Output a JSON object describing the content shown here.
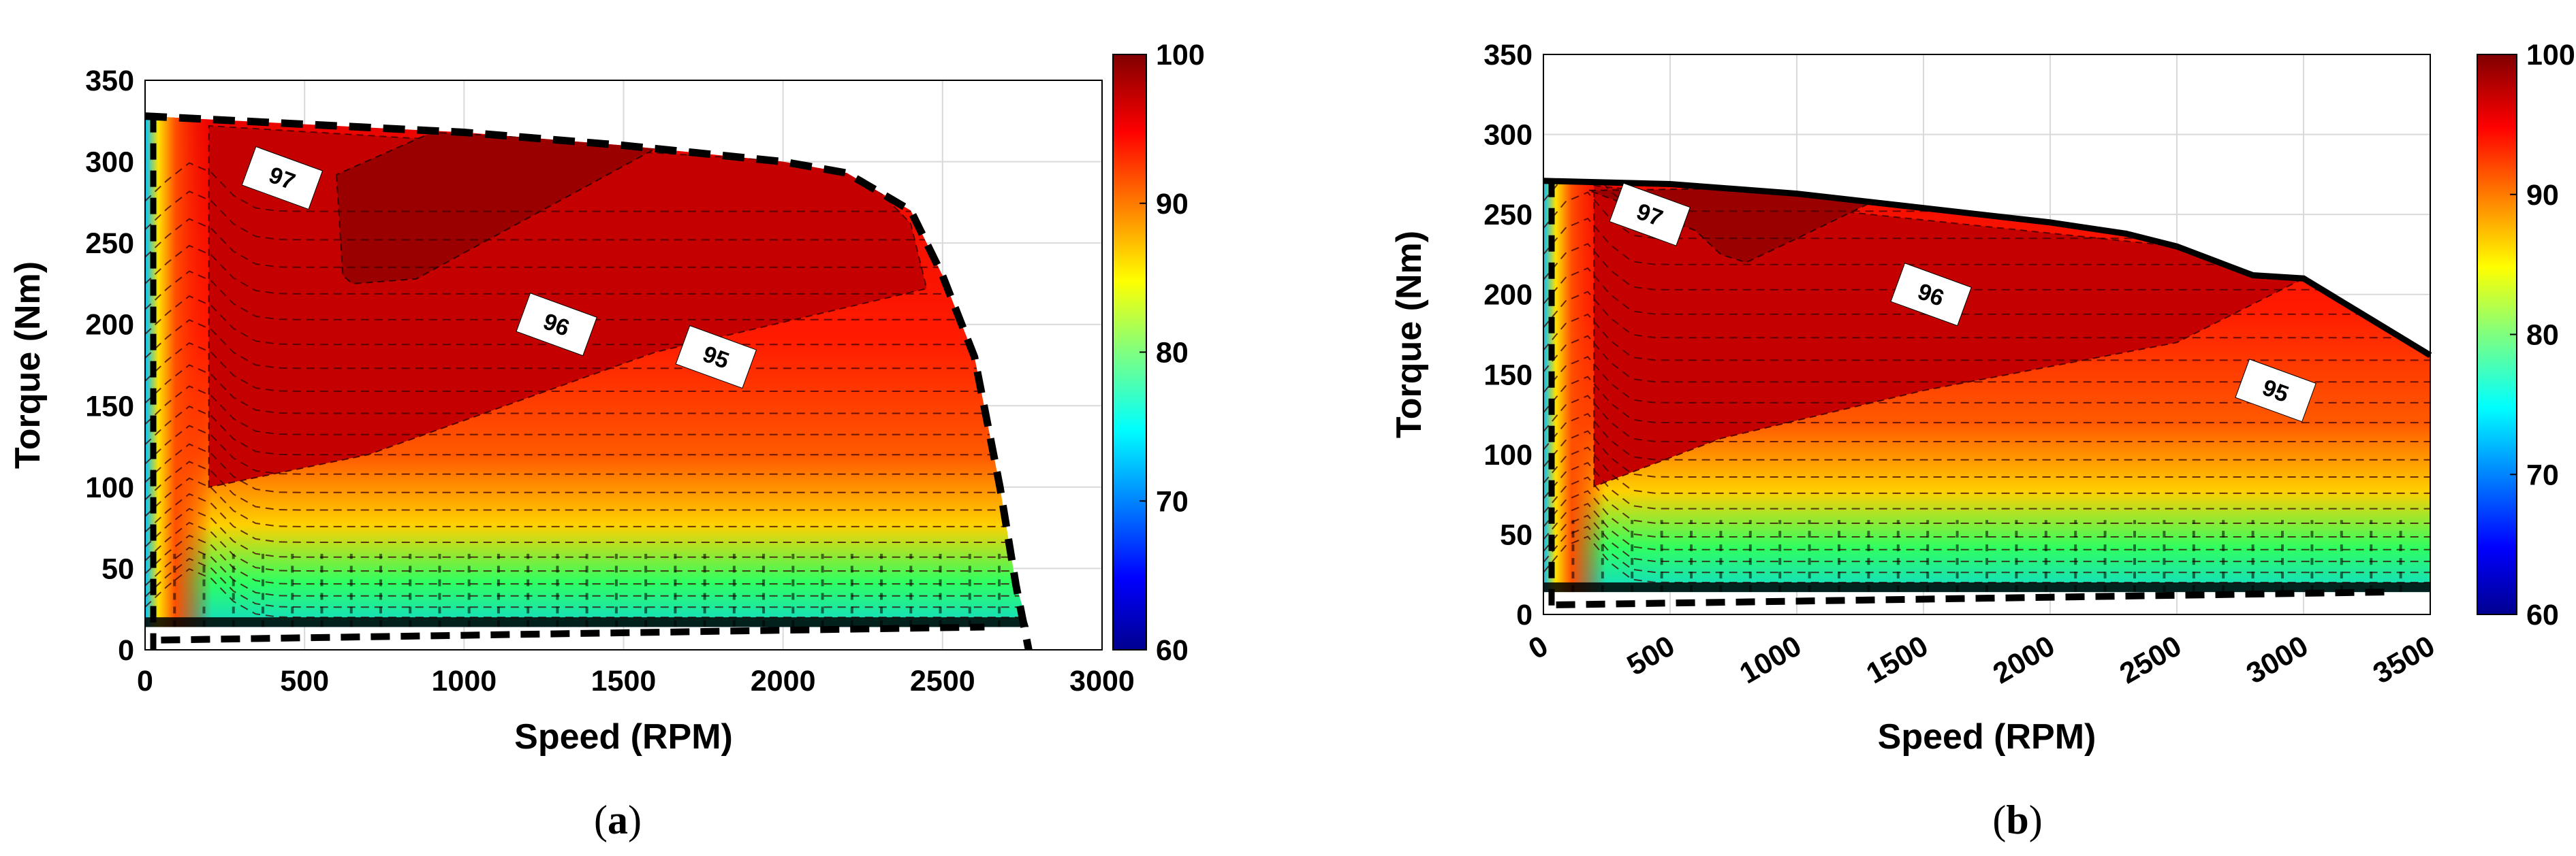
{
  "chart_data": [
    {
      "type": "heatmap",
      "panel_label": "a",
      "xlabel": "Speed (RPM)",
      "ylabel": "Torque (Nm)",
      "xlim": [
        0,
        3000
      ],
      "ylim": [
        0,
        350
      ],
      "xticks": [
        "0",
        "500",
        "1000",
        "1500",
        "2000",
        "2500",
        "3000"
      ],
      "yticks": [
        "0",
        "50",
        "100",
        "150",
        "200",
        "250",
        "300",
        "350"
      ],
      "grid": true,
      "colorbar": {
        "min": 60,
        "max": 100,
        "ticks": [
          "60",
          "70",
          "80",
          "90",
          "100"
        ]
      },
      "contour_labels": [
        {
          "text": "97",
          "speed": 430,
          "torque": 290
        },
        {
          "text": "96",
          "speed": 1290,
          "torque": 200
        },
        {
          "text": "95",
          "speed": 1790,
          "torque": 180
        }
      ],
      "torque_speed_envelope": [
        [
          0,
          328
        ],
        [
          500,
          323
        ],
        [
          1000,
          318
        ],
        [
          1500,
          310
        ],
        [
          2000,
          300
        ],
        [
          2200,
          293
        ],
        [
          2400,
          270
        ],
        [
          2500,
          230
        ],
        [
          2600,
          180
        ],
        [
          2680,
          100
        ],
        [
          2730,
          40
        ],
        [
          2770,
          0
        ]
      ],
      "efficiency_regions": {
        "97": [
          [
            600,
            292
          ],
          [
            620,
            230
          ],
          [
            650,
            225
          ],
          [
            850,
            228
          ],
          [
            1600,
            308
          ],
          [
            1500,
            312
          ],
          [
            900,
            318
          ]
        ],
        "96": [
          [
            200,
            100
          ],
          [
            200,
            322
          ],
          [
            2220,
            298
          ],
          [
            2400,
            262
          ],
          [
            2450,
            222
          ],
          [
            1600,
            183
          ],
          [
            700,
            120
          ]
        ]
      }
    },
    {
      "type": "heatmap",
      "panel_label": "b",
      "xlabel": "Speed (RPM)",
      "ylabel": "Torque (Nm)",
      "xlim": [
        0,
        3500
      ],
      "ylim": [
        0,
        350
      ],
      "xticks": [
        "0",
        "500",
        "1000",
        "1500",
        "2000",
        "2500",
        "3000",
        "3500"
      ],
      "yticks": [
        "0",
        "50",
        "100",
        "150",
        "200",
        "250",
        "300",
        "350"
      ],
      "grid": true,
      "colorbar": {
        "min": 60,
        "max": 100,
        "ticks": [
          "60",
          "70",
          "80",
          "90",
          "100"
        ]
      },
      "contour_labels": [
        {
          "text": "97",
          "speed": 420,
          "torque": 250
        },
        {
          "text": "96",
          "speed": 1530,
          "torque": 200
        },
        {
          "text": "95",
          "speed": 2890,
          "torque": 140
        }
      ],
      "torque_speed_envelope": [
        [
          0,
          271
        ],
        [
          500,
          269
        ],
        [
          1000,
          263
        ],
        [
          1500,
          254
        ],
        [
          2000,
          245
        ],
        [
          2300,
          238
        ],
        [
          2500,
          230
        ],
        [
          2700,
          218
        ],
        [
          2800,
          212
        ],
        [
          3000,
          210
        ],
        [
          3250,
          186
        ],
        [
          3500,
          162
        ]
      ],
      "efficiency_regions": {
        "97": [
          [
            180,
            265
          ],
          [
            650,
            266
          ],
          [
            1300,
            258
          ],
          [
            1000,
            235
          ],
          [
            800,
            220
          ],
          [
            700,
            225
          ],
          [
            600,
            240
          ]
        ],
        "96": [
          [
            200,
            80
          ],
          [
            200,
            268
          ],
          [
            2500,
            230
          ],
          [
            2700,
            218
          ],
          [
            3000,
            210
          ],
          [
            2500,
            170
          ],
          [
            1500,
            140
          ],
          [
            700,
            110
          ]
        ]
      }
    }
  ]
}
